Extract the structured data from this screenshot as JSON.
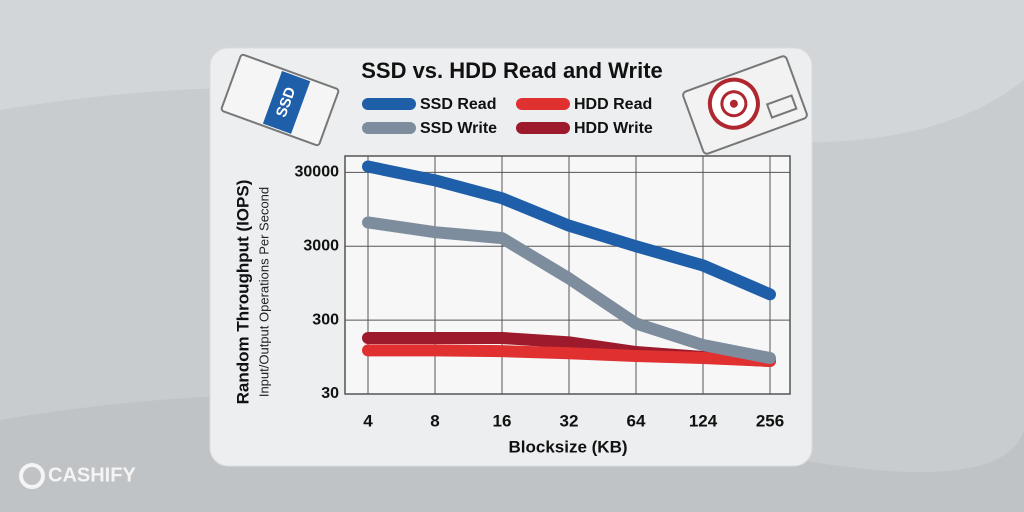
{
  "chart_data": {
    "type": "line",
    "title": "SSD vs. HDD Read and Write",
    "y_label": "Random Throughput (IOPS)",
    "y_sublabel": "Input/Output Operations Per Second",
    "x_label": "Blocksize (KB)",
    "categories": [
      "4",
      "8",
      "16",
      "32",
      "64",
      "124",
      "256"
    ],
    "series": [
      {
        "name": "SSD Read",
        "color": "#1f5ea8",
        "values": [
          36000,
          23400,
          13400,
          5700,
          3000,
          1650,
          670
        ]
      },
      {
        "name": "SSD Write",
        "color": "#7e8d9e",
        "values": [
          6300,
          4650,
          3870,
          1100,
          270,
          138,
          92
        ]
      },
      {
        "name": "HDD Read",
        "color": "#e0302f",
        "values": [
          117,
          117,
          114,
          107,
          98,
          92,
          84
        ]
      },
      {
        "name": "HDD Write",
        "color": "#9c1a2b",
        "values": [
          172,
          172,
          172,
          150,
          111,
          95,
          84
        ]
      }
    ],
    "log_y": true,
    "ylim": [
      30,
      50000
    ],
    "yticks": [
      30,
      300,
      3000,
      30000
    ],
    "grid": true
  },
  "ssd_icon_label": "SSD",
  "watermark": "CASHIFY"
}
